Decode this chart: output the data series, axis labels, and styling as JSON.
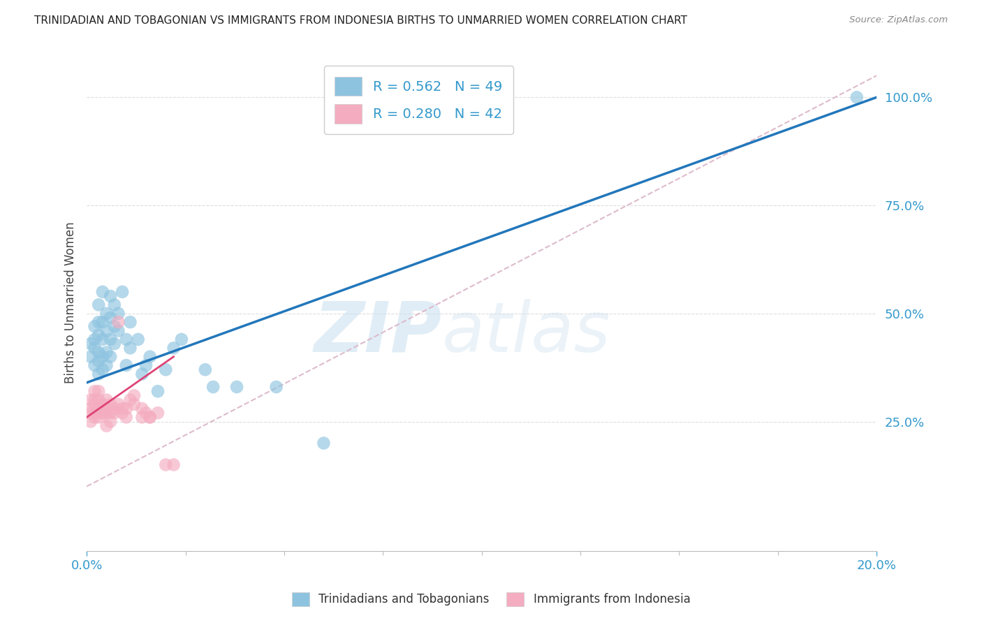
{
  "title": "TRINIDADIAN AND TOBAGONIAN VS IMMIGRANTS FROM INDONESIA BIRTHS TO UNMARRIED WOMEN CORRELATION CHART",
  "source": "Source: ZipAtlas.com",
  "ylabel": "Births to Unmarried Women",
  "right_yticks": [
    "25.0%",
    "50.0%",
    "75.0%",
    "100.0%"
  ],
  "right_ytick_vals": [
    0.25,
    0.5,
    0.75,
    1.0
  ],
  "watermark_zip": "ZIP",
  "watermark_atlas": "atlas",
  "legend_blue_label": "R = 0.562   N = 49",
  "legend_pink_label": "R = 0.280   N = 42",
  "bottom_legend_blue": "Trinidadians and Tobagonians",
  "bottom_legend_pink": "Immigrants from Indonesia",
  "blue_color": "#8ec3e0",
  "pink_color": "#f4adc0",
  "blue_line_color": "#2277bb",
  "pink_line_color": "#dd4477",
  "diag_line_color": "#ddbbcc",
  "title_color": "#222222",
  "source_color": "#888888",
  "axis_color": "#3399cc",
  "right_axis_color": "#3399cc",
  "background_color": "#ffffff",
  "grid_color": "#dddddd",
  "blue_scatter_x": [
    0.001,
    0.001,
    0.002,
    0.002,
    0.002,
    0.002,
    0.003,
    0.003,
    0.003,
    0.003,
    0.003,
    0.003,
    0.004,
    0.004,
    0.004,
    0.004,
    0.004,
    0.005,
    0.005,
    0.005,
    0.005,
    0.006,
    0.006,
    0.006,
    0.006,
    0.007,
    0.007,
    0.007,
    0.008,
    0.008,
    0.009,
    0.01,
    0.01,
    0.011,
    0.011,
    0.013,
    0.014,
    0.015,
    0.016,
    0.018,
    0.02,
    0.022,
    0.024,
    0.03,
    0.032,
    0.038,
    0.048,
    0.06,
    0.195
  ],
  "blue_scatter_y": [
    0.4,
    0.43,
    0.38,
    0.42,
    0.44,
    0.47,
    0.36,
    0.39,
    0.41,
    0.45,
    0.48,
    0.52,
    0.37,
    0.4,
    0.44,
    0.48,
    0.55,
    0.38,
    0.41,
    0.46,
    0.5,
    0.4,
    0.44,
    0.49,
    0.54,
    0.43,
    0.47,
    0.52,
    0.46,
    0.5,
    0.55,
    0.38,
    0.44,
    0.42,
    0.48,
    0.44,
    0.36,
    0.38,
    0.4,
    0.32,
    0.37,
    0.42,
    0.44,
    0.37,
    0.33,
    0.33,
    0.33,
    0.2,
    1.0
  ],
  "pink_scatter_x": [
    0.001,
    0.001,
    0.001,
    0.001,
    0.002,
    0.002,
    0.002,
    0.002,
    0.002,
    0.003,
    0.003,
    0.003,
    0.003,
    0.004,
    0.004,
    0.004,
    0.005,
    0.005,
    0.005,
    0.005,
    0.006,
    0.006,
    0.006,
    0.007,
    0.007,
    0.008,
    0.008,
    0.009,
    0.009,
    0.01,
    0.01,
    0.011,
    0.012,
    0.012,
    0.014,
    0.014,
    0.015,
    0.016,
    0.016,
    0.018,
    0.02,
    0.022
  ],
  "pink_scatter_y": [
    0.28,
    0.3,
    0.25,
    0.27,
    0.29,
    0.32,
    0.27,
    0.3,
    0.26,
    0.26,
    0.28,
    0.3,
    0.32,
    0.27,
    0.29,
    0.27,
    0.24,
    0.27,
    0.3,
    0.28,
    0.27,
    0.29,
    0.25,
    0.27,
    0.28,
    0.48,
    0.29,
    0.28,
    0.27,
    0.26,
    0.28,
    0.3,
    0.29,
    0.31,
    0.28,
    0.26,
    0.27,
    0.26,
    0.26,
    0.27,
    0.15,
    0.15
  ],
  "blue_line_x": [
    0.0,
    0.2
  ],
  "blue_line_y": [
    0.34,
    1.0
  ],
  "pink_line_x": [
    0.0,
    0.022
  ],
  "pink_line_y": [
    0.26,
    0.4
  ],
  "diag_line_x": [
    0.0,
    0.2
  ],
  "diag_line_y": [
    0.1,
    1.05
  ],
  "xlim": [
    0.0,
    0.2
  ],
  "ylim": [
    -0.05,
    1.1
  ],
  "figsize": [
    14.06,
    8.92
  ],
  "dpi": 100
}
